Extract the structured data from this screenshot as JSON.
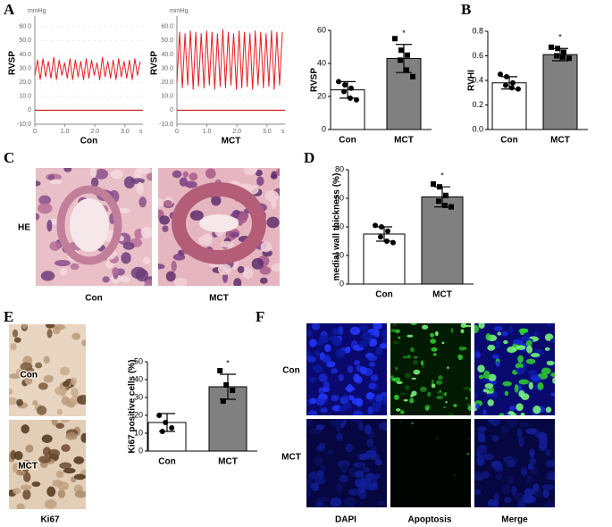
{
  "panel_labels": [
    "A",
    "B",
    "C",
    "D",
    "E",
    "F"
  ],
  "chart_data": [
    {
      "type": "line",
      "y_unit": "mmHg",
      "ylabel": "RVSP",
      "xlabel": "Con",
      "x_unit": "s",
      "x": [
        0,
        0.09,
        0.18,
        0.27,
        0.36,
        0.45,
        0.54,
        0.63,
        0.72,
        0.81,
        0.9,
        0.99,
        1.08,
        1.17,
        1.26,
        1.35,
        1.44,
        1.53,
        1.62,
        1.71,
        1.8,
        1.89,
        1.98,
        2.07,
        2.16,
        2.25,
        2.34,
        2.43,
        2.52,
        2.61,
        2.7,
        2.79,
        2.88,
        2.97,
        3.06,
        3.15,
        3.24,
        3.33,
        3.42,
        3.51
      ],
      "series": [
        {
          "color": "#e8191f",
          "values": [
            25,
            36,
            22,
            37,
            24,
            35,
            23,
            38,
            22,
            36,
            25,
            34,
            23,
            37,
            22,
            36,
            24,
            35,
            22,
            37,
            23,
            36,
            25,
            34,
            22,
            38,
            24,
            35,
            23,
            36,
            22,
            37,
            24,
            35,
            23,
            36,
            22,
            37,
            25,
            35
          ]
        }
      ],
      "baseline": 0,
      "baseline_color": "#c00000",
      "xlim": [
        0,
        3.6
      ],
      "xticks": [
        0,
        {
          "value": 1,
          "label": "1.0"
        },
        {
          "value": 2,
          "label": "2.0"
        },
        {
          "value": 3,
          "label": "3.0"
        }
      ],
      "ylim": [
        -10,
        65
      ],
      "yticks": [
        {
          "value": 60,
          "label": "60.0"
        },
        {
          "value": 50,
          "label": "50.0"
        },
        {
          "value": 40,
          "label": "40.0"
        },
        {
          "value": 30,
          "label": "30.0"
        },
        {
          "value": 20,
          "label": "20.0"
        },
        {
          "value": 10,
          "label": "10.0"
        },
        0,
        {
          "value": -10,
          "label": "-10.0"
        }
      ]
    },
    {
      "type": "line",
      "y_unit": "mmHg",
      "ylabel": "RVSP",
      "xlabel": "MCT",
      "x_unit": "s",
      "x": [
        0,
        0.09,
        0.18,
        0.27,
        0.36,
        0.45,
        0.54,
        0.63,
        0.72,
        0.81,
        0.9,
        0.99,
        1.08,
        1.17,
        1.26,
        1.35,
        1.44,
        1.53,
        1.62,
        1.71,
        1.8,
        1.89,
        1.98,
        2.07,
        2.16,
        2.25,
        2.34,
        2.43,
        2.52,
        2.61,
        2.7,
        2.79,
        2.88,
        2.97,
        3.06,
        3.15,
        3.24,
        3.33,
        3.42,
        3.51
      ],
      "series": [
        {
          "color": "#e8191f",
          "values": [
            20,
            56,
            16,
            55,
            18,
            57,
            15,
            56,
            17,
            55,
            16,
            57,
            18,
            56,
            15,
            55,
            17,
            58,
            16,
            56,
            18,
            55,
            15,
            57,
            16,
            56,
            17,
            55,
            15,
            57,
            18,
            56,
            16,
            55,
            17,
            57,
            15,
            56,
            18,
            56
          ]
        }
      ],
      "baseline": 0,
      "baseline_color": "#c00000",
      "xlim": [
        0,
        3.6
      ],
      "xticks": [
        0,
        {
          "value": 1,
          "label": "1.0"
        },
        {
          "value": 2,
          "label": "2.0"
        },
        {
          "value": 3,
          "label": "3.0"
        }
      ],
      "ylim": [
        -10,
        65
      ],
      "yticks": [
        {
          "value": 60,
          "label": "60.0"
        },
        {
          "value": 50,
          "label": "50.0"
        },
        {
          "value": 40,
          "label": "40.0"
        },
        {
          "value": 30,
          "label": "30.0"
        },
        {
          "value": 20,
          "label": "20.0"
        },
        {
          "value": 10,
          "label": "10.0"
        },
        0,
        {
          "value": -10,
          "label": "-10.0"
        }
      ]
    },
    {
      "type": "bar",
      "ylabel": "RVSP",
      "categories": [
        "Con",
        "MCT"
      ],
      "values": [
        24,
        43
      ],
      "errors": [
        5,
        8.5
      ],
      "points": [
        [
          29,
          27,
          25,
          23,
          19,
          18
        ],
        [
          55,
          48,
          45,
          42,
          36,
          32
        ]
      ],
      "colors": [
        "#ffffff",
        "#808080"
      ],
      "markers": [
        "circle",
        "square"
      ],
      "annotation": {
        "text": "*",
        "category": "MCT"
      },
      "ylim": [
        0,
        60
      ],
      "yticks": [
        0,
        20,
        40,
        60
      ]
    },
    {
      "type": "bar",
      "ylabel": "RVHI",
      "categories": [
        "Con",
        "MCT"
      ],
      "values": [
        0.38,
        0.61
      ],
      "errors": [
        0.05,
        0.05
      ],
      "points": [
        [
          0.45,
          0.43,
          0.38,
          0.36,
          0.34,
          0.33
        ],
        [
          0.67,
          0.66,
          0.63,
          0.6,
          0.59,
          0.58
        ]
      ],
      "colors": [
        "#ffffff",
        "#808080"
      ],
      "markers": [
        "circle",
        "square"
      ],
      "annotation": {
        "text": "*",
        "category": "MCT"
      },
      "ylim": [
        0,
        0.8
      ],
      "yticks": [
        {
          "value": 0,
          "label": "0.0"
        },
        0.2,
        0.4,
        0.6,
        0.8
      ]
    },
    {
      "type": "bar",
      "ylabel": "medial wall thickness (%)",
      "categories": [
        "Con",
        "MCT"
      ],
      "values": [
        35,
        61
      ],
      "errors": [
        5,
        7
      ],
      "points": [
        [
          41,
          40,
          37,
          33,
          30,
          29
        ],
        [
          70,
          68,
          62,
          58,
          55,
          54
        ]
      ],
      "colors": [
        "#ffffff",
        "#808080"
      ],
      "markers": [
        "circle",
        "square"
      ],
      "annotation": {
        "text": "*",
        "category": "MCT"
      },
      "ylim": [
        0,
        80
      ],
      "yticks": [
        0,
        20,
        40,
        60,
        80
      ]
    },
    {
      "type": "bar",
      "ylabel": "Ki67 positive cells (%)",
      "categories": [
        "Con",
        "MCT"
      ],
      "values": [
        16,
        36
      ],
      "errors": [
        5,
        7
      ],
      "points": [
        [
          20,
          16,
          13,
          11
        ],
        [
          45,
          37,
          34,
          28
        ]
      ],
      "colors": [
        "#ffffff",
        "#808080"
      ],
      "markers": [
        "circle",
        "square"
      ],
      "annotation": {
        "text": "*",
        "category": "MCT"
      },
      "ylim": [
        0,
        50
      ],
      "yticks": [
        0,
        10,
        20,
        30,
        40,
        50
      ]
    }
  ],
  "images": {
    "he": {
      "row_label": "HE",
      "captions": [
        "Con",
        "MCT"
      ]
    },
    "ki67": {
      "row_labels": [
        "Con",
        "MCT"
      ],
      "caption": "Ki67"
    },
    "fluorescence": {
      "row_labels": [
        "Con",
        "MCT"
      ],
      "columns": [
        "DAPI",
        "Apoptosis",
        "Merge"
      ]
    }
  }
}
